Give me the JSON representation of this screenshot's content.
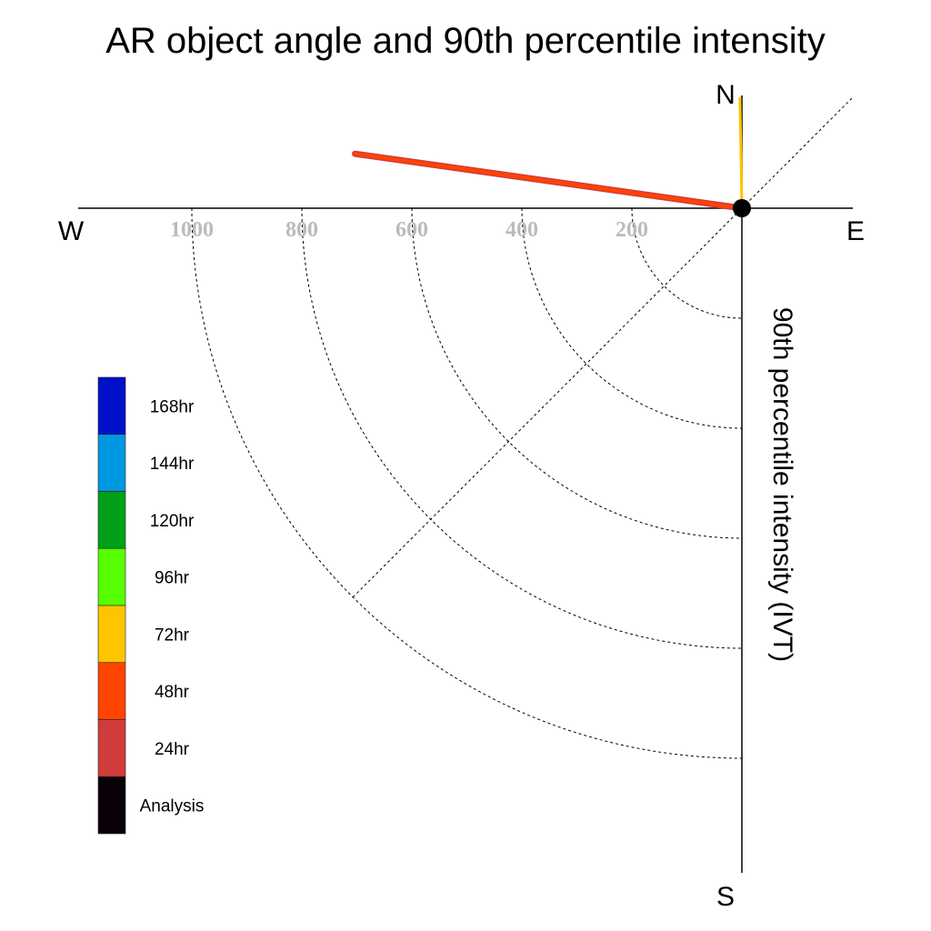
{
  "chart_data": {
    "type": "polar-line",
    "title": "AR object angle and 90th percentile intensity",
    "ylabel": "90th percentile intensity (IVT)",
    "compass": {
      "north": "N",
      "south": "S",
      "east": "E",
      "west": "W"
    },
    "radial_ticks": [
      200,
      400,
      600,
      800,
      1000
    ],
    "radial_range": [
      0,
      1200
    ],
    "grid": true,
    "legend_position": "left",
    "legend": [
      {
        "label": "168hr",
        "color": "#0010c8"
      },
      {
        "label": "144hr",
        "color": "#0098e0"
      },
      {
        "label": "120hr",
        "color": "#00a018"
      },
      {
        "label": "96hr",
        "color": "#58ff00"
      },
      {
        "label": "72hr",
        "color": "#ffc400"
      },
      {
        "label": "48hr",
        "color": "#ff4400"
      },
      {
        "label": "24hr",
        "color": "#d03c3c"
      },
      {
        "label": "Analysis",
        "color": "#0a0008"
      }
    ],
    "series": [
      {
        "name": "Analysis",
        "angle_deg": 359,
        "intensity": 200,
        "color": "#0a0008"
      },
      {
        "name": "24hr",
        "angle_deg": 278,
        "intensity": 710,
        "color": "#d03c3c"
      },
      {
        "name": "48hr",
        "angle_deg": 278,
        "intensity": 710,
        "color": "#ff4400"
      },
      {
        "name": "72hr",
        "angle_deg": 359,
        "intensity": 200,
        "color": "#ffc400"
      }
    ]
  }
}
